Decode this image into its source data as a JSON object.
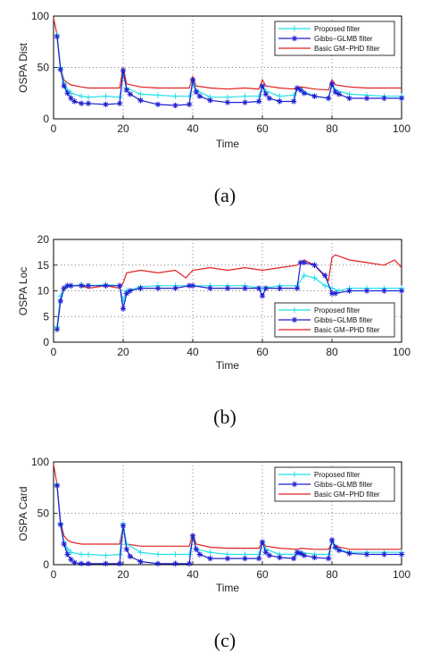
{
  "colors": {
    "proposed": "#22e0e8",
    "gibbs": "#1f1fd0",
    "phd": "#e02020"
  },
  "legend_entries": [
    "Proposed filter",
    "Gibbs−GLMB filter",
    "Basic GM−PHD filter"
  ],
  "chart_data": [
    {
      "type": "line",
      "caption": "(a)",
      "xlabel": "Time",
      "ylabel": "OSPA Dist",
      "xlim": [
        0,
        100
      ],
      "ylim": [
        0,
        100
      ],
      "xticks": [
        0,
        20,
        40,
        60,
        80,
        100
      ],
      "yticks": [
        0,
        50,
        100
      ],
      "grid": true,
      "legend_position": "top-right",
      "series": [
        {
          "name": "Proposed filter",
          "color": "#22e0e8",
          "marker": "+",
          "x": [
            1,
            2,
            3,
            4,
            5,
            8,
            10,
            15,
            19,
            20,
            21,
            25,
            30,
            35,
            39,
            40,
            41,
            45,
            50,
            55,
            59,
            60,
            61,
            65,
            69,
            70,
            71,
            75,
            79,
            80,
            81,
            85,
            90,
            95,
            100
          ],
          "y": [
            82,
            50,
            35,
            28,
            25,
            22,
            21,
            22,
            21,
            43,
            30,
            24,
            23,
            22,
            22,
            34,
            28,
            21,
            21,
            22,
            22,
            32,
            27,
            22,
            23,
            30,
            28,
            22,
            20,
            32,
            28,
            24,
            23,
            22,
            22
          ]
        },
        {
          "name": "Gibbs−GLMB filter",
          "color": "#1f1fd0",
          "marker": "*",
          "x": [
            1,
            2,
            3,
            4,
            5,
            6,
            8,
            10,
            15,
            19,
            20,
            21,
            22,
            25,
            30,
            35,
            39,
            40,
            41,
            42,
            45,
            50,
            55,
            59,
            60,
            61,
            62,
            65,
            69,
            70,
            71,
            72,
            75,
            79,
            80,
            81,
            82,
            85,
            90,
            95,
            100
          ],
          "y": [
            80,
            48,
            32,
            25,
            20,
            17,
            15,
            15,
            14,
            15,
            47,
            28,
            24,
            18,
            14,
            13,
            14,
            38,
            26,
            22,
            18,
            16,
            16,
            17,
            32,
            24,
            20,
            17,
            17,
            30,
            28,
            25,
            22,
            20,
            34,
            26,
            24,
            20,
            20,
            20,
            20
          ]
        },
        {
          "name": "Basic GM−PHD filter",
          "color": "#e02020",
          "marker": "none",
          "x": [
            0,
            1,
            2,
            3,
            4,
            5,
            8,
            10,
            15,
            19,
            20,
            21,
            25,
            30,
            35,
            39,
            40,
            41,
            45,
            50,
            55,
            59,
            60,
            61,
            65,
            69,
            70,
            71,
            75,
            79,
            80,
            81,
            85,
            90,
            95,
            100
          ],
          "y": [
            98,
            82,
            50,
            38,
            35,
            33,
            31,
            30,
            30,
            30,
            50,
            34,
            31,
            30,
            30,
            30,
            41,
            32,
            30,
            29,
            30,
            29,
            38,
            32,
            30,
            29,
            30,
            31,
            29,
            28,
            38,
            33,
            31,
            30,
            30,
            30
          ]
        }
      ]
    },
    {
      "type": "line",
      "caption": "(b)",
      "xlabel": "Time",
      "ylabel": "OSPA Loc",
      "xlim": [
        0,
        100
      ],
      "ylim": [
        0,
        20
      ],
      "xticks": [
        0,
        20,
        40,
        60,
        80,
        100
      ],
      "yticks": [
        0,
        5,
        10,
        15,
        20
      ],
      "grid": true,
      "legend_position": "bottom-right",
      "series": [
        {
          "name": "Proposed filter",
          "color": "#22e0e8",
          "marker": "+",
          "x": [
            1,
            2,
            3,
            5,
            8,
            10,
            15,
            19,
            20,
            21,
            25,
            30,
            35,
            40,
            45,
            50,
            55,
            60,
            65,
            70,
            72,
            75,
            78,
            80,
            82,
            85,
            90,
            95,
            100
          ],
          "y": [
            3,
            9,
            10.5,
            11,
            11.2,
            11,
            11.2,
            11,
            8,
            10,
            10.8,
            11,
            11,
            11,
            11,
            11,
            11,
            10.5,
            11,
            11,
            13,
            12.5,
            11,
            10.5,
            10,
            10.5,
            10.5,
            10.5,
            10.5
          ]
        },
        {
          "name": "Gibbs−GLMB filter",
          "color": "#1f1fd0",
          "marker": "*",
          "x": [
            1,
            2,
            3,
            4,
            5,
            8,
            10,
            15,
            19,
            20,
            21,
            22,
            25,
            30,
            35,
            39,
            40,
            45,
            50,
            55,
            59,
            60,
            61,
            65,
            70,
            71,
            72,
            75,
            78,
            80,
            81,
            85,
            90,
            95,
            100
          ],
          "y": [
            2.5,
            8,
            10.5,
            11,
            11,
            11,
            11,
            11,
            11,
            6.5,
            9.5,
            10,
            10.5,
            10.5,
            10.5,
            11,
            11,
            10.5,
            10.5,
            10.5,
            10.5,
            9,
            10.5,
            10.5,
            10.5,
            15.5,
            15.5,
            15,
            13,
            9.5,
            9.5,
            10,
            10,
            10,
            10
          ]
        },
        {
          "name": "Basic GM−PHD filter",
          "color": "#e02020",
          "marker": "none",
          "x": [
            1,
            2,
            3,
            5,
            8,
            10,
            15,
            19,
            20,
            21,
            25,
            30,
            35,
            38,
            40,
            45,
            50,
            55,
            60,
            65,
            70,
            72,
            75,
            79,
            80,
            81,
            85,
            90,
            95,
            98,
            100
          ],
          "y": [
            2.5,
            8,
            10.5,
            11,
            11,
            10.5,
            11,
            10.5,
            11.5,
            13.5,
            14,
            13.5,
            14,
            12.5,
            14,
            14.5,
            14,
            14.5,
            14,
            14.5,
            15,
            16,
            15,
            12,
            16.5,
            17,
            16,
            15.5,
            15,
            16,
            14.5
          ]
        }
      ]
    },
    {
      "type": "line",
      "caption": "(c)",
      "xlabel": "Time",
      "ylabel": "OSPA Card",
      "xlim": [
        0,
        100
      ],
      "ylim": [
        0,
        100
      ],
      "xticks": [
        0,
        20,
        40,
        60,
        80,
        100
      ],
      "yticks": [
        0,
        50,
        100
      ],
      "grid": true,
      "legend_position": "top-right",
      "series": [
        {
          "name": "Proposed filter",
          "color": "#22e0e8",
          "marker": "+",
          "x": [
            1,
            2,
            3,
            4,
            5,
            8,
            10,
            15,
            19,
            20,
            21,
            25,
            30,
            35,
            39,
            40,
            41,
            45,
            50,
            55,
            59,
            60,
            61,
            65,
            70,
            71,
            75,
            79,
            80,
            81,
            85,
            90,
            95,
            100
          ],
          "y": [
            78,
            40,
            22,
            15,
            12,
            10,
            10,
            9,
            10,
            40,
            20,
            12,
            10,
            10,
            10,
            26,
            15,
            12,
            10,
            10,
            10,
            22,
            15,
            10,
            10,
            12,
            10,
            10,
            22,
            16,
            12,
            12,
            12,
            12
          ]
        },
        {
          "name": "Gibbs−GLMB filter",
          "color": "#1f1fd0",
          "marker": "*",
          "x": [
            1,
            2,
            3,
            4,
            5,
            6,
            8,
            10,
            15,
            19,
            20,
            21,
            22,
            25,
            30,
            35,
            39,
            40,
            41,
            42,
            45,
            50,
            55,
            59,
            60,
            61,
            62,
            65,
            69,
            70,
            71,
            72,
            75,
            79,
            80,
            81,
            82,
            85,
            90,
            95,
            100
          ],
          "y": [
            77,
            39,
            20,
            10,
            5,
            2,
            1,
            1,
            1,
            1,
            38,
            15,
            8,
            3,
            1,
            1,
            1,
            28,
            15,
            10,
            6,
            6,
            6,
            6,
            22,
            12,
            9,
            7,
            6,
            12,
            11,
            9,
            7,
            6,
            24,
            17,
            14,
            11,
            10,
            10,
            10
          ]
        },
        {
          "name": "Basic GM−PHD filter",
          "color": "#e02020",
          "marker": "none",
          "x": [
            0,
            1,
            2,
            3,
            4,
            5,
            8,
            10,
            15,
            19,
            20,
            21,
            25,
            30,
            35,
            39,
            40,
            41,
            45,
            50,
            55,
            59,
            60,
            61,
            65,
            70,
            71,
            75,
            79,
            80,
            81,
            85,
            90,
            95,
            100
          ],
          "y": [
            98,
            78,
            42,
            28,
            24,
            22,
            20,
            20,
            20,
            20,
            38,
            20,
            18,
            18,
            18,
            18,
            30,
            20,
            17,
            16,
            16,
            16,
            22,
            18,
            16,
            15,
            16,
            15,
            15,
            22,
            18,
            15,
            15,
            15,
            15
          ]
        }
      ]
    }
  ]
}
